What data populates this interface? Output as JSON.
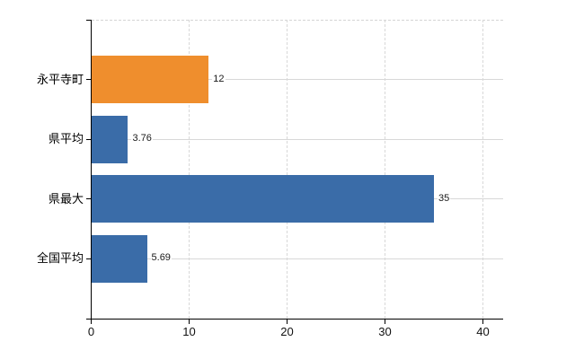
{
  "chart_data": {
    "type": "bar",
    "orientation": "horizontal",
    "title": "",
    "xlabel": "",
    "ylabel": "",
    "categories": [
      "永平寺町",
      "県平均",
      "県最大",
      "全国平均"
    ],
    "values": [
      12,
      3.76,
      35,
      5.69
    ],
    "value_labels": [
      "12",
      "3.76",
      "35",
      "5.69"
    ],
    "bar_colors": [
      "#EF8E2D",
      "#3A6CA8",
      "#3A6CA8",
      "#3A6CA8"
    ],
    "xlim": [
      0,
      42
    ],
    "x_ticks": [
      0,
      10,
      20,
      30,
      40
    ],
    "x_tick_labels": [
      "0",
      "10",
      "20",
      "30",
      "40"
    ],
    "legend_position": "none",
    "grid": {
      "horizontal_style": "solid",
      "vertical_style": "dashed",
      "top_border_style": "dashed",
      "color": "#d8d8d8"
    },
    "axis_color": "#000000",
    "text_color": "#1a1a1a",
    "background_color": "#ffffff"
  }
}
